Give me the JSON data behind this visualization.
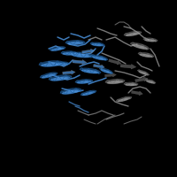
{
  "background_color": "#000000",
  "figsize": [
    2.0,
    2.0
  ],
  "dpi": 100,
  "blue_color": "#4a90d9",
  "gray_color": "#a0a0a0",
  "dark_blue": "#2060a0",
  "dark_gray": "#707070"
}
